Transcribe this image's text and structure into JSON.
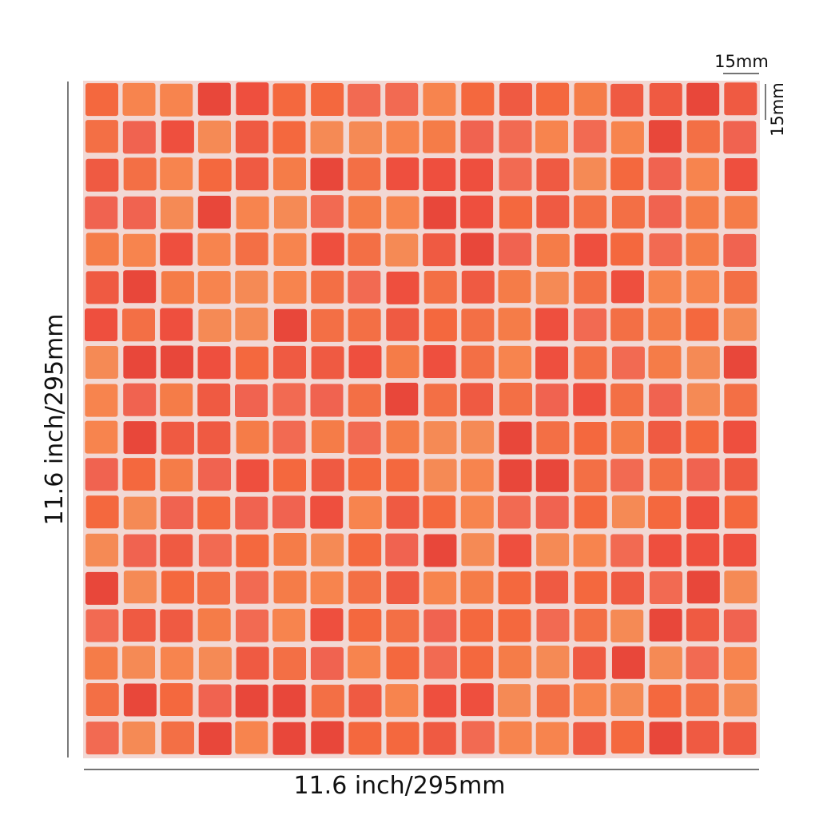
{
  "dimensions": {
    "tile_width": "15mm",
    "tile_height": "15mm",
    "sheet_height": "11.6 inch/295mm",
    "sheet_width": "11.6 inch/295mm"
  }
}
